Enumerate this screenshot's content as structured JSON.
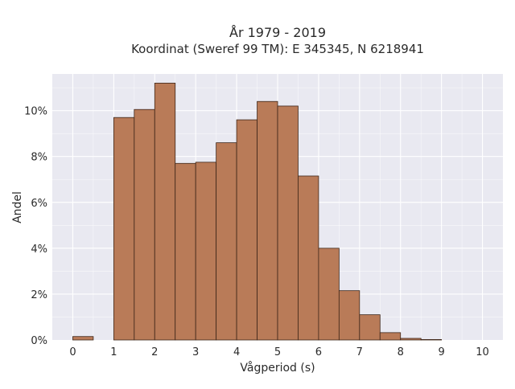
{
  "chart_data": {
    "type": "bar",
    "title": "År 1979 - 2019",
    "subtitle": "Koordinat (Sweref 99 TM): E 345345, N 6218941",
    "xlabel": "Vågperiod (s)",
    "ylabel": "Andel",
    "xlim": [
      -0.5,
      10.5
    ],
    "ylim": [
      0,
      11.6
    ],
    "x_ticks": [
      0,
      1,
      2,
      3,
      4,
      5,
      6,
      7,
      8,
      9,
      10
    ],
    "y_ticks": [
      0,
      2,
      4,
      6,
      8,
      10
    ],
    "y_tick_suffix": "%",
    "bin_width": 0.5,
    "bins": [
      {
        "x0": 0.0,
        "value": 0.15
      },
      {
        "x0": 0.5,
        "value": 0.0
      },
      {
        "x0": 1.0,
        "value": 9.7
      },
      {
        "x0": 1.5,
        "value": 10.05
      },
      {
        "x0": 2.0,
        "value": 11.2
      },
      {
        "x0": 2.5,
        "value": 7.7
      },
      {
        "x0": 3.0,
        "value": 7.75
      },
      {
        "x0": 3.5,
        "value": 8.6
      },
      {
        "x0": 4.0,
        "value": 9.6
      },
      {
        "x0": 4.5,
        "value": 10.4
      },
      {
        "x0": 5.0,
        "value": 10.2
      },
      {
        "x0": 5.5,
        "value": 7.15
      },
      {
        "x0": 6.0,
        "value": 4.0
      },
      {
        "x0": 6.5,
        "value": 2.15
      },
      {
        "x0": 7.0,
        "value": 1.1
      },
      {
        "x0": 7.5,
        "value": 0.32
      },
      {
        "x0": 8.0,
        "value": 0.07
      },
      {
        "x0": 8.5,
        "value": 0.02
      },
      {
        "x0": 9.0,
        "value": 0.0
      },
      {
        "x0": 9.5,
        "value": 0.0
      }
    ],
    "grid": true,
    "legend": "none",
    "colors": {
      "bar_fill": "#b97b58",
      "bar_stroke": "#3d2518",
      "plot_bg": "#e9e9f1",
      "grid": "#ffffff"
    }
  }
}
